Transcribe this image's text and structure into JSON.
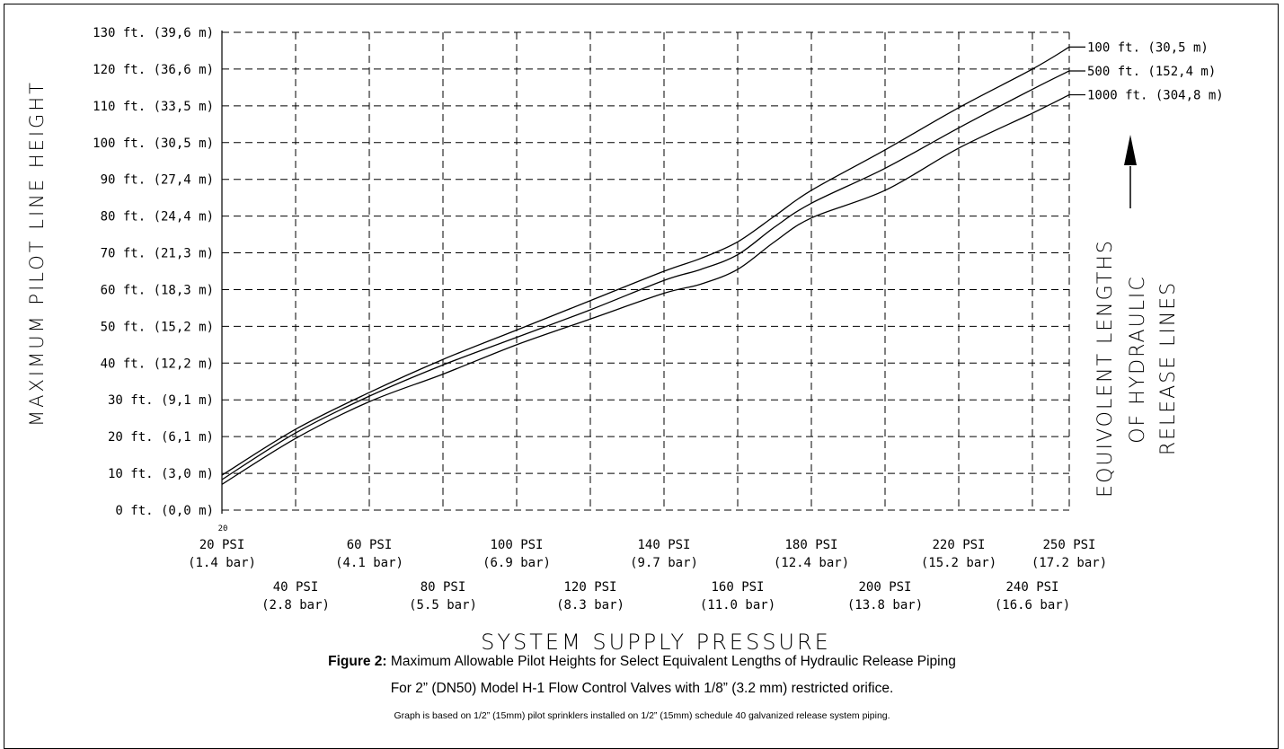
{
  "chart_data": {
    "type": "line",
    "title": "",
    "ylabel": "MAXIMUM PILOT LINE HEIGHT",
    "xlabel": "SYSTEM SUPPLY PRESSURE",
    "right_label": [
      "EQUIVOLENT LENGTHS",
      "OF HYDRAULIC",
      "RELEASE LINES"
    ],
    "xlim": [
      20,
      250
    ],
    "ylim": [
      0,
      130
    ],
    "x_ticks": [
      {
        "value": 20,
        "psi": "20 PSI",
        "bar": "(1.4 bar)",
        "row": 1
      },
      {
        "value": 40,
        "psi": "40 PSI",
        "bar": "(2.8 bar)",
        "row": 2
      },
      {
        "value": 60,
        "psi": "60 PSI",
        "bar": "(4.1 bar)",
        "row": 1
      },
      {
        "value": 80,
        "psi": "80 PSI",
        "bar": "(5.5 bar)",
        "row": 2
      },
      {
        "value": 100,
        "psi": "100 PSI",
        "bar": "(6.9 bar)",
        "row": 1
      },
      {
        "value": 120,
        "psi": "120 PSI",
        "bar": "(8.3 bar)",
        "row": 2
      },
      {
        "value": 140,
        "psi": "140 PSI",
        "bar": "(9.7 bar)",
        "row": 1
      },
      {
        "value": 160,
        "psi": "160 PSI",
        "bar": "(11.0 bar)",
        "row": 2
      },
      {
        "value": 180,
        "psi": "180 PSI",
        "bar": "(12.4 bar)",
        "row": 1
      },
      {
        "value": 200,
        "psi": "200 PSI",
        "bar": "(13.8 bar)",
        "row": 2
      },
      {
        "value": 220,
        "psi": "220 PSI",
        "bar": "(15.2 bar)",
        "row": 1
      },
      {
        "value": 240,
        "psi": "240 PSI",
        "bar": "(16.6 bar)",
        "row": 2
      },
      {
        "value": 250,
        "psi": "250 PSI",
        "bar": "(17.2 bar)",
        "row": 1
      }
    ],
    "x_origin_mark": "20",
    "y_ticks": [
      {
        "value": 0,
        "label": "0 ft. (0,0 m)"
      },
      {
        "value": 10,
        "label": "10 ft. (3,0 m)"
      },
      {
        "value": 20,
        "label": "20 ft. (6,1 m)"
      },
      {
        "value": 30,
        "label": "30 ft. (9,1 m)"
      },
      {
        "value": 40,
        "label": "40 ft. (12,2 m)"
      },
      {
        "value": 50,
        "label": "50 ft. (15,2 m)"
      },
      {
        "value": 60,
        "label": "60 ft. (18,3 m)"
      },
      {
        "value": 70,
        "label": "70 ft. (21,3 m)"
      },
      {
        "value": 80,
        "label": "80 ft. (24,4 m)"
      },
      {
        "value": 90,
        "label": "90 ft. (27,4 m)"
      },
      {
        "value": 100,
        "label": "100 ft. (30,5 m)"
      },
      {
        "value": 110,
        "label": "110 ft. (33,5 m)"
      },
      {
        "value": 120,
        "label": "120 ft. (36,6 m)"
      },
      {
        "value": 130,
        "label": "130 ft. (39,6 m)"
      }
    ],
    "grid": true,
    "series": [
      {
        "name": "100 ft. (30,5 m)",
        "x": [
          20,
          40,
          60,
          80,
          100,
          120,
          140,
          150,
          160,
          170,
          180,
          200,
          220,
          240,
          250
        ],
        "values": [
          9.5,
          22,
          32,
          41,
          49,
          57,
          65,
          68.5,
          73,
          80,
          87,
          98,
          109.5,
          120,
          126
        ]
      },
      {
        "name": "500 ft. (152,4 m)",
        "x": [
          20,
          40,
          60,
          80,
          100,
          120,
          140,
          150,
          160,
          170,
          180,
          200,
          220,
          240,
          250
        ],
        "values": [
          8.3,
          21,
          31,
          39.5,
          47,
          54.5,
          62.5,
          65.5,
          69.5,
          77,
          83.5,
          93,
          104,
          114.5,
          119.5
        ]
      },
      {
        "name": "1000 ft. (304,8 m)",
        "x": [
          20,
          40,
          60,
          80,
          100,
          120,
          140,
          150,
          160,
          170,
          180,
          200,
          220,
          240,
          250
        ],
        "values": [
          7,
          19.5,
          29.5,
          37,
          45,
          52,
          59,
          61.5,
          65.5,
          73,
          79.5,
          87,
          98.5,
          108,
          113
        ]
      }
    ]
  },
  "caption": {
    "figure_label": "Figure 2:",
    "line1": "Maximum Allowable Pilot Heights for Select Equivalent Lengths of Hydraulic Release Piping",
    "line2": "For 2” (DN50) Model H-1 Flow Control Valves with 1/8” (3.2 mm) restricted orifice.",
    "line3": "Graph is based on 1/2” (15mm) pilot sprinklers installed on 1/2” (15mm) schedule 40 galvanized release system piping."
  }
}
